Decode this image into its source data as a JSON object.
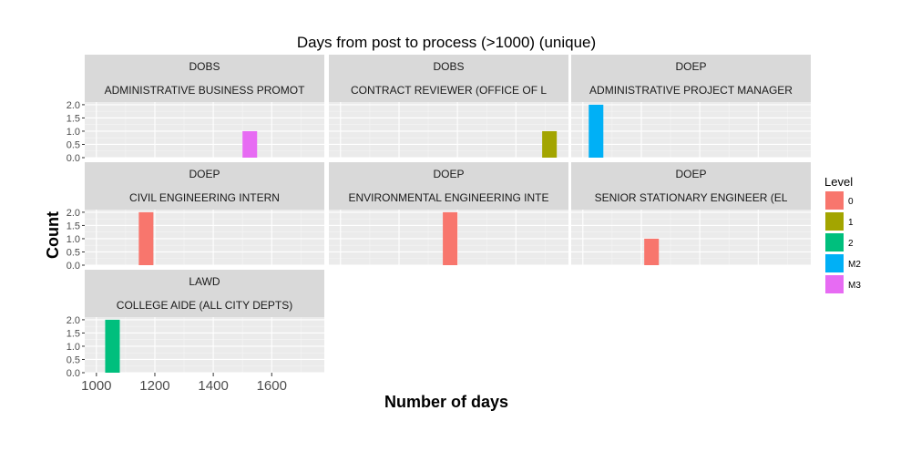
{
  "chart_data": {
    "type": "bar",
    "title": "Days from post to process (>1000) (unique)",
    "xlabel": "Number of days",
    "ylabel": "Count",
    "xlim": [
      960,
      1780
    ],
    "ylim": [
      0,
      2.1
    ],
    "x_ticks": [
      1000,
      1200,
      1400,
      1600
    ],
    "y_ticks": [
      0.0,
      0.5,
      1.0,
      1.5,
      2.0
    ],
    "y_tick_labels": [
      "0.0",
      "0.5",
      "1.0",
      "1.5",
      "2.0"
    ],
    "bin_width": 50,
    "grid": true,
    "legend": {
      "title": "Level",
      "placement": "right",
      "items": [
        {
          "label": "0",
          "color": "#F8766D"
        },
        {
          "label": "1",
          "color": "#A3A500"
        },
        {
          "label": "2",
          "color": "#00BF7D"
        },
        {
          "label": "M2",
          "color": "#00B0F6"
        },
        {
          "label": "M3",
          "color": "#E76BF3"
        }
      ]
    },
    "panels": [
      {
        "strip1": "DOBS",
        "strip2": "ADMINISTRATIVE BUSINESS PROMOT",
        "bars": [
          {
            "x": 1525,
            "count": 1,
            "level": "M3"
          }
        ]
      },
      {
        "strip1": "DOBS",
        "strip2": "CONTRACT REVIEWER (OFFICE OF L",
        "bars": [
          {
            "x": 1715,
            "count": 1,
            "level": "1"
          }
        ]
      },
      {
        "strip1": "DOEP",
        "strip2": "ADMINISTRATIVE PROJECT MANAGER",
        "bars": [
          {
            "x": 1045,
            "count": 2,
            "level": "M2"
          }
        ]
      },
      {
        "strip1": "DOEP",
        "strip2": "CIVIL ENGINEERING INTERN",
        "bars": [
          {
            "x": 1170,
            "count": 2,
            "level": "0"
          }
        ]
      },
      {
        "strip1": "DOEP",
        "strip2": "ENVIRONMENTAL ENGINEERING INTE",
        "bars": [
          {
            "x": 1375,
            "count": 2,
            "level": "0"
          }
        ]
      },
      {
        "strip1": "DOEP",
        "strip2": "SENIOR STATIONARY ENGINEER (EL",
        "bars": [
          {
            "x": 1235,
            "count": 1,
            "level": "0"
          }
        ]
      },
      {
        "strip1": "LAWD",
        "strip2": "COLLEGE AIDE (ALL CITY DEPTS)",
        "bars": [
          {
            "x": 1055,
            "count": 2,
            "level": "2"
          }
        ]
      }
    ]
  }
}
